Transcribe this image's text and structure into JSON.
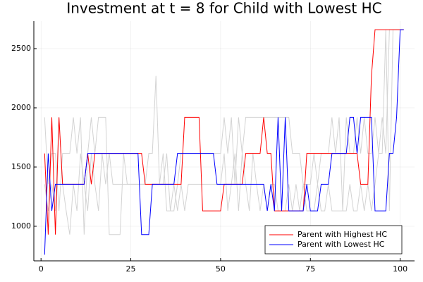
{
  "chart_data": {
    "type": "line",
    "title": "Investment at t = 8 for Child with Lowest HC",
    "x": [
      1,
      2,
      3,
      4,
      5,
      6,
      7,
      8,
      9,
      10,
      11,
      12,
      13,
      14,
      15,
      16,
      17,
      18,
      19,
      20,
      21,
      22,
      23,
      24,
      25,
      26,
      27,
      28,
      29,
      30,
      31,
      32,
      33,
      34,
      35,
      36,
      37,
      38,
      39,
      40,
      41,
      42,
      43,
      44,
      45,
      46,
      47,
      48,
      49,
      50,
      51,
      52,
      53,
      54,
      55,
      56,
      57,
      58,
      59,
      60,
      61,
      62,
      63,
      64,
      65,
      66,
      67,
      68,
      69,
      70,
      71,
      72,
      73,
      74,
      75,
      76,
      77,
      78,
      79,
      80,
      81,
      82,
      83,
      84,
      85,
      86,
      87,
      88,
      89,
      90,
      91,
      92,
      93,
      94,
      95,
      96,
      97,
      98,
      99,
      100,
      101
    ],
    "series": [
      {
        "color": "#d3d3d3",
        "values": [
          1920,
          1355,
          1615,
          1615,
          1130,
          1615,
          1615,
          1615,
          1920,
          1615,
          1920,
          930,
          1615,
          1920,
          1615,
          1920,
          1920,
          1920,
          930,
          930,
          930,
          930,
          1615,
          1355,
          1355,
          1355,
          1355,
          1355,
          1355,
          1615,
          1615,
          2270,
          1355,
          1615,
          1130,
          1130,
          1130,
          1355,
          1615,
          1615,
          1615,
          1615,
          1615,
          1615,
          1615,
          1615,
          1615,
          1615,
          1615,
          1615,
          1920,
          1615,
          1920,
          1355,
          1920,
          1615,
          1920,
          1920,
          1920,
          1920,
          1920,
          1920,
          1920,
          1920,
          1920,
          1920,
          1920,
          1920,
          1920,
          1615,
          1615,
          1615,
          1355,
          1355,
          1355,
          1615,
          1355,
          1615,
          1615,
          1615,
          1920,
          1615,
          1920,
          1130,
          1920,
          1615,
          1615,
          1920,
          1615,
          1920,
          1615,
          1615,
          1920,
          1615,
          1920,
          1615,
          2660,
          2660,
          2660,
          2660,
          2660
        ]
      },
      {
        "color": "#d3d3d3",
        "values": [
          1355,
          1130,
          1355,
          1130,
          1920,
          1355,
          1130,
          930,
          1355,
          1130,
          1615,
          1355,
          1130,
          1615,
          1355,
          1130,
          1615,
          1355,
          1615,
          1355,
          1355,
          1355,
          1355,
          1355,
          1355,
          1355,
          1355,
          1355,
          1355,
          1355,
          1355,
          1355,
          1355,
          1355,
          1615,
          1130,
          1355,
          1130,
          1355,
          1130,
          1355,
          1355,
          1355,
          1355,
          1355,
          1355,
          1355,
          1355,
          1355,
          1355,
          1615,
          1130,
          1355,
          1615,
          1130,
          1615,
          1355,
          1130,
          1615,
          1355,
          1130,
          1355,
          1130,
          1355,
          1355,
          1130,
          1130,
          1130,
          1355,
          1130,
          1355,
          1130,
          1355,
          1130,
          1130,
          1130,
          1355,
          1130,
          1130,
          1355,
          1130,
          1130,
          1130,
          1130,
          1130,
          1355,
          1130,
          1130,
          1355,
          1130,
          1355,
          1130,
          1355,
          1615,
          1615,
          2660,
          1130,
          2660,
          2660,
          2660,
          2660
        ]
      },
      {
        "name": "Parent with Highest HC",
        "color": "#ff0000",
        "values": [
          1615,
          930,
          1920,
          930,
          1920,
          1355,
          1355,
          1355,
          1355,
          1355,
          1355,
          1355,
          1615,
          1355,
          1615,
          1615,
          1615,
          1615,
          1615,
          1615,
          1615,
          1615,
          1615,
          1615,
          1615,
          1615,
          1615,
          1615,
          1355,
          1355,
          1355,
          1355,
          1355,
          1355,
          1355,
          1355,
          1355,
          1355,
          1355,
          1920,
          1920,
          1920,
          1920,
          1920,
          1130,
          1130,
          1130,
          1130,
          1130,
          1130,
          1355,
          1355,
          1355,
          1355,
          1355,
          1355,
          1615,
          1615,
          1615,
          1615,
          1615,
          1920,
          1615,
          1615,
          1130,
          1130,
          1130,
          1130,
          1130,
          1130,
          1130,
          1130,
          1130,
          1615,
          1615,
          1615,
          1615,
          1615,
          1615,
          1615,
          1615,
          1615,
          1615,
          1615,
          1615,
          1615,
          1615,
          1615,
          1355,
          1355,
          1355,
          2270,
          2660,
          2660,
          2660,
          2660,
          2660,
          2660,
          2660,
          2660,
          2660
        ]
      },
      {
        "name": "Parent with Lowest HC",
        "color": "#0000ff",
        "values": [
          760,
          1615,
          1130,
          1355,
          1355,
          1355,
          1355,
          1355,
          1355,
          1355,
          1355,
          1355,
          1615,
          1615,
          1615,
          1615,
          1615,
          1615,
          1615,
          1615,
          1615,
          1615,
          1615,
          1615,
          1615,
          1615,
          1615,
          930,
          930,
          930,
          1355,
          1355,
          1355,
          1355,
          1355,
          1355,
          1355,
          1615,
          1615,
          1615,
          1615,
          1615,
          1615,
          1615,
          1615,
          1615,
          1615,
          1615,
          1355,
          1355,
          1355,
          1355,
          1355,
          1355,
          1355,
          1355,
          1355,
          1355,
          1355,
          1355,
          1355,
          1355,
          1130,
          1355,
          1130,
          1920,
          1130,
          1920,
          1130,
          1130,
          1130,
          1130,
          1130,
          1355,
          1130,
          1130,
          1130,
          1355,
          1355,
          1355,
          1615,
          1615,
          1615,
          1615,
          1615,
          1920,
          1920,
          1615,
          1920,
          1920,
          1920,
          1920,
          1130,
          1130,
          1130,
          1130,
          1615,
          1615,
          1920,
          2660,
          2660
        ]
      }
    ],
    "xlim": [
      -2,
      104
    ],
    "xticks": [
      0,
      25,
      50,
      75,
      100
    ],
    "ylim": [
      708,
      2732
    ],
    "yticks": [
      1000,
      1500,
      2000,
      2500
    ],
    "grid": true,
    "legend": "bottom-right"
  }
}
